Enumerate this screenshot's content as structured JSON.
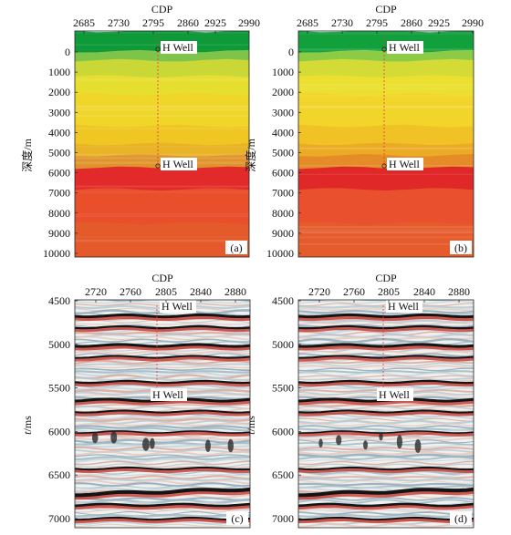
{
  "figure": {
    "panels": [
      {
        "id": "a",
        "label": "(a)",
        "kind": "velocity",
        "axis_title_top": "CDP",
        "x_ticks": [
          "2685",
          "2730",
          "2795",
          "2860",
          "2925",
          "2990"
        ],
        "y_title": "深度/m",
        "y_ticks": [
          "0",
          "1000",
          "2000",
          "3000",
          "4000",
          "5000",
          "6000",
          "7000",
          "8000",
          "9000",
          "10000"
        ],
        "well_label_top": "H Well",
        "well_label_bottom": "H Well",
        "layer_colors": [
          "#0f9a3a",
          "#7fc44a",
          "#c9d737",
          "#e7df30",
          "#f0d628",
          "#f0c623",
          "#e9b326",
          "#e0932a",
          "#e22a2a",
          "#ea4f2c",
          "#e55a2b"
        ]
      },
      {
        "id": "b",
        "label": "(b)",
        "kind": "velocity",
        "axis_title_top": "CDP",
        "x_ticks": [
          "2685",
          "2730",
          "2795",
          "2860",
          "2925",
          "2990"
        ],
        "y_title": "深度/m",
        "y_ticks": [
          "0",
          "1000",
          "2000",
          "3000",
          "4000",
          "5000",
          "6000",
          "7000",
          "8000",
          "9000",
          "10000"
        ],
        "well_label_top": "H Well",
        "well_label_bottom": "H Well",
        "layer_colors": [
          "#12a03d",
          "#8ccb45",
          "#d4da36",
          "#ebe02f",
          "#f2d52a",
          "#f0c225",
          "#ebab24",
          "#e58c29",
          "#e02828",
          "#e9502d",
          "#e55b2b"
        ]
      },
      {
        "id": "c",
        "label": "(c)",
        "kind": "seismic",
        "axis_title_top": "CDP",
        "x_ticks": [
          "2720",
          "2760",
          "2805",
          "2840",
          "2880"
        ],
        "y_title": "t/ms",
        "y_ticks": [
          "4500",
          "5000",
          "5500",
          "6000",
          "6500",
          "7000"
        ],
        "well_label_top": "H Well",
        "well_label_bottom": "H Well"
      },
      {
        "id": "d",
        "label": "(d)",
        "kind": "seismic",
        "axis_title_top": "CDP",
        "x_ticks": [
          "2720",
          "2760",
          "2805",
          "2840",
          "2880"
        ],
        "y_title": "t/ms",
        "y_ticks": [
          "4500",
          "5000",
          "5500",
          "6000",
          "6500",
          "7000"
        ],
        "well_label_top": "H Well",
        "well_label_bottom": "H Well"
      }
    ]
  }
}
